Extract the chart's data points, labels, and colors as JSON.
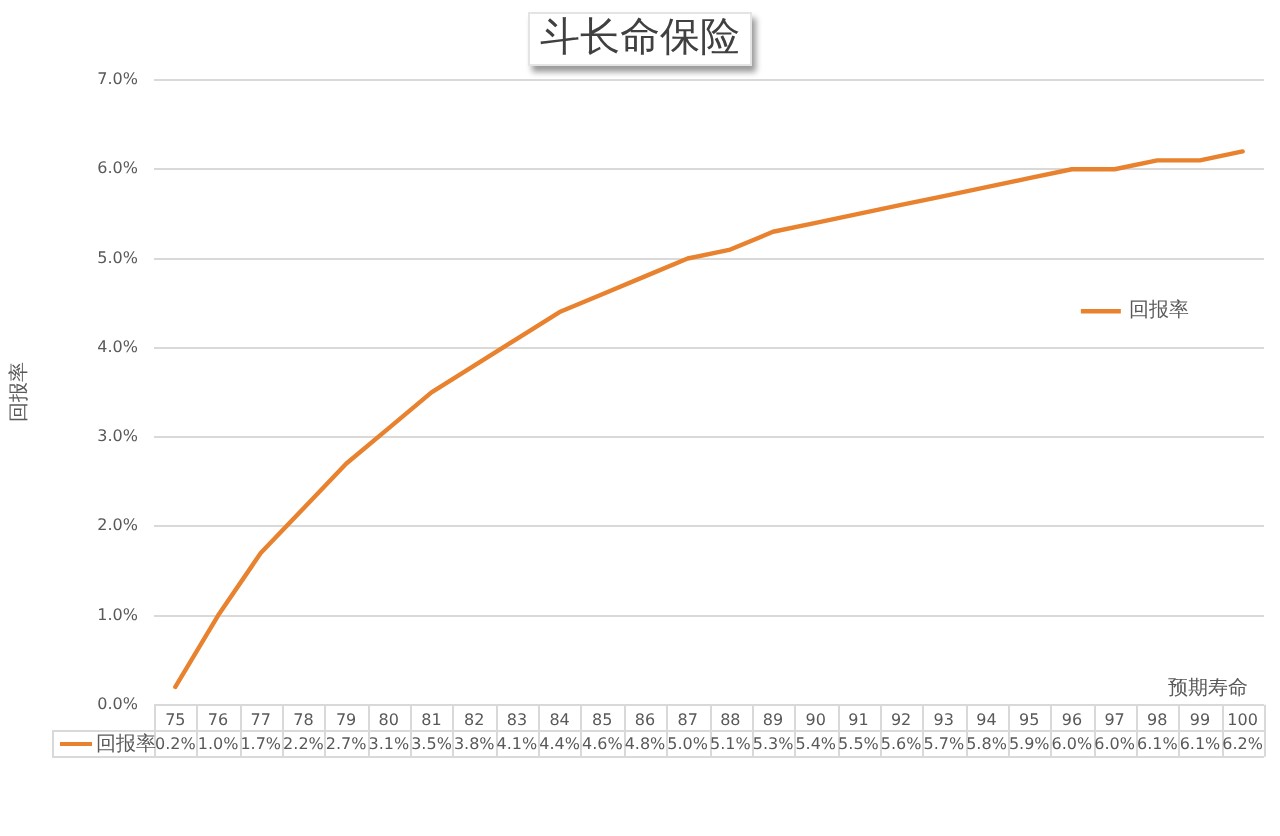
{
  "chart_data": {
    "type": "line",
    "title": "斗长命保险",
    "xlabel": "预期寿命",
    "ylabel": "回报率",
    "categories": [
      "75",
      "76",
      "77",
      "78",
      "79",
      "80",
      "81",
      "82",
      "83",
      "84",
      "85",
      "86",
      "87",
      "88",
      "89",
      "90",
      "91",
      "92",
      "93",
      "94",
      "95",
      "96",
      "97",
      "98",
      "99",
      "100"
    ],
    "series": [
      {
        "name": "回报率",
        "color": "#e8822e",
        "values": [
          0.2,
          1.0,
          1.7,
          2.2,
          2.7,
          3.1,
          3.5,
          3.8,
          4.1,
          4.4,
          4.6,
          4.8,
          5.0,
          5.1,
          5.3,
          5.4,
          5.5,
          5.6,
          5.7,
          5.8,
          5.9,
          6.0,
          6.0,
          6.1,
          6.1,
          6.2
        ],
        "value_labels": [
          "0.2%",
          "1.0%",
          "1.7%",
          "2.2%",
          "2.7%",
          "3.1%",
          "3.5%",
          "3.8%",
          "4.1%",
          "4.4%",
          "4.6%",
          "4.8%",
          "5.0%",
          "5.1%",
          "5.3%",
          "5.4%",
          "5.5%",
          "5.6%",
          "5.7%",
          "5.8%",
          "5.9%",
          "6.0%",
          "6.0%",
          "6.1%",
          "6.1%",
          "6.2%"
        ]
      }
    ],
    "ylim": [
      0,
      7
    ],
    "yticks": [
      {
        "value": 0,
        "label": "0.0%"
      },
      {
        "value": 1,
        "label": "1.0%"
      },
      {
        "value": 2,
        "label": "2.0%"
      },
      {
        "value": 3,
        "label": "3.0%"
      },
      {
        "value": 4,
        "label": "4.0%"
      },
      {
        "value": 5,
        "label": "5.0%"
      },
      {
        "value": 6,
        "label": "6.0%"
      },
      {
        "value": 7,
        "label": "7.0%"
      }
    ],
    "grid": "y",
    "legend": "right",
    "marker": "none"
  }
}
